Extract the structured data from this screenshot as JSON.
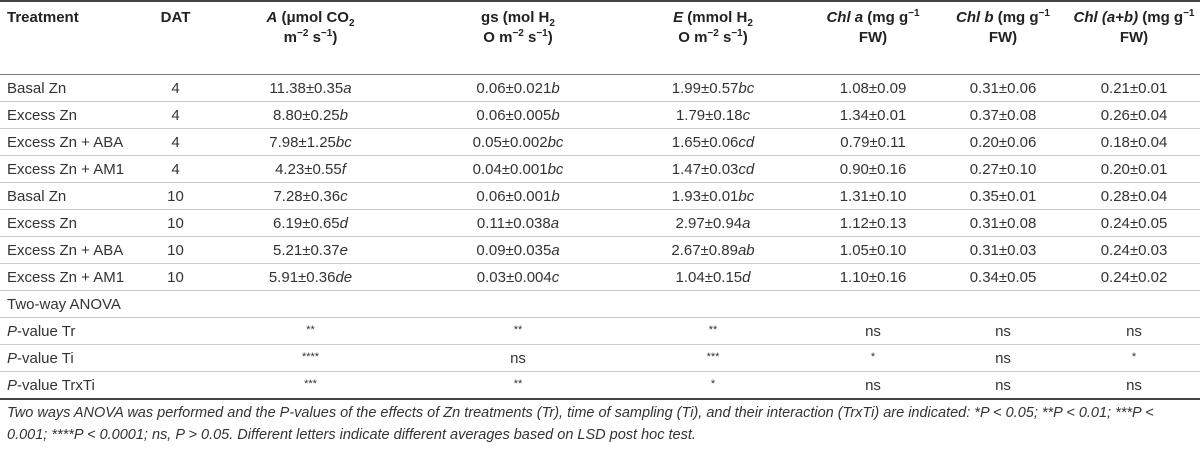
{
  "table": {
    "headers": [
      [
        "Treatment"
      ],
      [
        "DAT"
      ],
      [
        "A",
        " (μmol CO",
        "2",
        " m",
        "−2",
        " s",
        "−1",
        ")"
      ],
      [
        "gs (mol H",
        "2",
        "O m",
        "−2",
        " s",
        "−1",
        ")"
      ],
      [
        "E",
        " (mmol H",
        "2",
        "O m",
        "−2",
        " s",
        "−1",
        ")"
      ],
      [
        "Chl a",
        " (mg g",
        "−1",
        " FW)"
      ],
      [
        "Chl b",
        " (mg g",
        "−1",
        " FW)"
      ],
      [
        "Chl (a+b)",
        " (mg g",
        "−1",
        " FW)"
      ]
    ],
    "rows": [
      [
        "Basal Zn",
        "4",
        "11.38±0.35",
        "a",
        "0.06±0.021",
        "b",
        "1.99±0.57",
        "bc",
        "1.08±0.09",
        "0.31±0.06",
        "0.21±0.01"
      ],
      [
        "Excess Zn",
        "4",
        "8.80±0.25",
        "b",
        "0.06±0.005",
        "b",
        "1.79±0.18",
        "c",
        "1.34±0.01",
        "0.37±0.08",
        "0.26±0.04"
      ],
      [
        "Excess Zn + ABA",
        "4",
        "7.98±1.25",
        "bc",
        "0.05±0.002",
        "bc",
        "1.65±0.06",
        "cd",
        "0.79±0.11",
        "0.20±0.06",
        "0.18±0.04"
      ],
      [
        "Excess Zn + AM1",
        "4",
        "4.23±0.55",
        "f",
        "0.04±0.001",
        "bc",
        "1.47±0.03",
        "cd",
        "0.90±0.16",
        "0.27±0.10",
        "0.20±0.01"
      ],
      [
        "Basal Zn",
        "10",
        "7.28±0.36",
        "c",
        "0.06±0.001",
        "b",
        "1.93±0.01",
        "bc",
        "1.31±0.10",
        "0.35±0.01",
        "0.28±0.04"
      ],
      [
        "Excess Zn",
        "10",
        "6.19±0.65",
        "d",
        "0.11±0.038",
        "a",
        "2.97±0.94",
        "a",
        "1.12±0.13",
        "0.31±0.08",
        "0.24±0.05"
      ],
      [
        "Excess Zn + ABA",
        "10",
        "5.21±0.37",
        "e",
        "0.09±0.035",
        "a",
        "2.67±0.89",
        "ab",
        "1.05±0.10",
        "0.31±0.03",
        "0.24±0.03"
      ],
      [
        "Excess Zn + AM1",
        "10",
        "5.91±0.36",
        "de",
        "0.03±0.004",
        "c",
        "1.04±0.15",
        "d",
        "1.10±0.16",
        "0.34±0.05",
        "0.24±0.02"
      ]
    ],
    "anova_title": "Two-way ANOVA",
    "anova_rows": [
      [
        "P",
        "-value Tr",
        "**",
        "**",
        "**",
        "ns",
        "ns",
        "ns"
      ],
      [
        "P",
        "-value Ti",
        "****",
        "ns",
        "***",
        "*",
        "ns",
        "*"
      ],
      [
        "P",
        "-value TrxTi",
        "***",
        "**",
        "*",
        "ns",
        "ns",
        "ns"
      ]
    ]
  },
  "footnote": "Two ways ANOVA was performed and the P-values of the effects of Zn treatments (Tr), time of sampling (Ti), and their interaction (TrxTi) are indicated: *P < 0.05; **P < 0.01; ***P < 0.001; ****P < 0.0001; ns, P > 0.05. Different letters indicate different averages based on LSD post hoc test."
}
